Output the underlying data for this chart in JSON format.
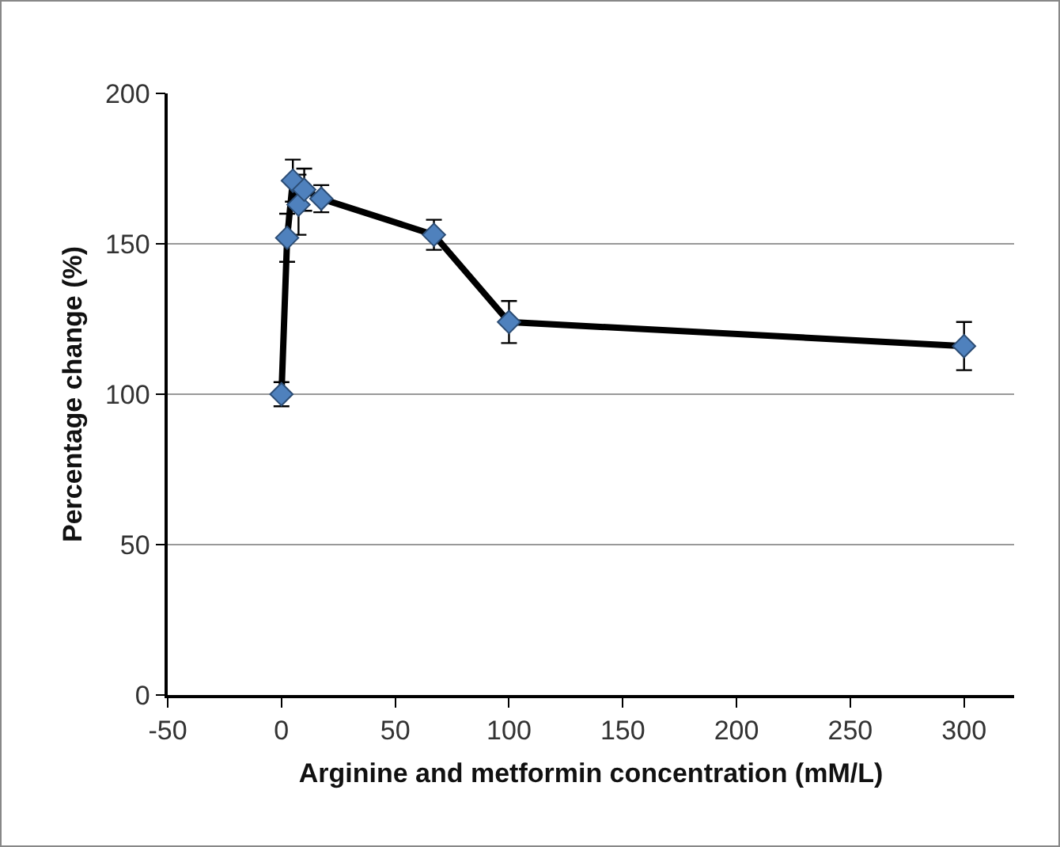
{
  "chart_data": {
    "type": "line",
    "xlabel": "Arginine and metformin concentration (mM/L)",
    "ylabel": "Percentage change (%)",
    "x": [
      0,
      2.5,
      5,
      7.5,
      10,
      17.5,
      67,
      100,
      300
    ],
    "series": [
      {
        "color": "#4f81bd",
        "values": [
          100,
          152,
          171,
          163,
          168,
          165,
          153,
          124,
          116
        ],
        "errors": [
          4,
          8,
          7,
          10,
          7,
          4.5,
          5,
          7,
          8
        ]
      }
    ],
    "xlim": [
      -50,
      322
    ],
    "xticks": [
      -50,
      0,
      50,
      100,
      150,
      200,
      250,
      300
    ],
    "ylim": [
      0,
      200
    ],
    "yticks": [
      0,
      50,
      100,
      150,
      200
    ],
    "grid": "y",
    "marker": "diamond",
    "line_style": "solid"
  }
}
